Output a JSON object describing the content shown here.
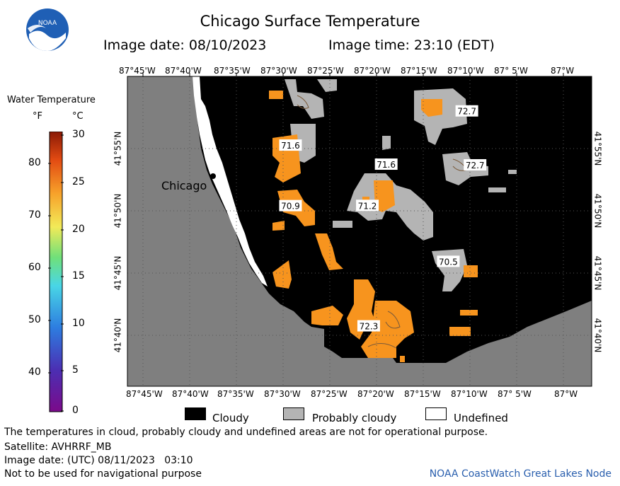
{
  "header": {
    "title": "Chicago Surface Temperature",
    "image_date": "Image date: 08/10/2023",
    "image_time": "Image time: 23:10 (EDT)"
  },
  "logo": {
    "text": "NOAA",
    "icon": "noaa-logo-icon"
  },
  "map": {
    "city_label": "Chicago",
    "lon_labels": [
      "87°45'W",
      "87°40'W",
      "87°35'W",
      "87°30'W",
      "87°25'W",
      "87°20'W",
      "87°15'W",
      "87°10'W",
      "87° 5'W",
      "87°W"
    ],
    "lat_labels": [
      "41°55'N",
      "41°50'N",
      "41°45'N",
      "41°40'N"
    ],
    "temp_labels": [
      {
        "value": "72.7",
        "lon": -87.1722,
        "lat": 41.9662
      },
      {
        "value": "71.6",
        "lon": -87.4868,
        "lat": 41.9204
      },
      {
        "value": "71.6",
        "lon": -87.3161,
        "lat": 41.8949
      },
      {
        "value": "72.7",
        "lon": -87.1576,
        "lat": 41.894
      },
      {
        "value": "70.9",
        "lon": -87.4868,
        "lat": 41.8394
      },
      {
        "value": "71.2",
        "lon": -87.3497,
        "lat": 41.8397
      },
      {
        "value": "70.5",
        "lon": -87.2053,
        "lat": 41.7648
      },
      {
        "value": "72.3",
        "lon": -87.3473,
        "lat": 41.6785
      }
    ],
    "colors": {
      "land": "#7f7f7f",
      "cloudy": "#000000",
      "probably_cloudy": "#b4b4b4",
      "warm_water": "#f7941e",
      "undefined": "#ffffff"
    }
  },
  "legend": {
    "title": "Water Temperature",
    "unit_f": "°F",
    "unit_c": "°C",
    "f_ticks": [
      "80",
      "70",
      "60",
      "50",
      "40"
    ],
    "c_ticks": [
      "30",
      "25",
      "20",
      "15",
      "10",
      "5",
      "0"
    ]
  },
  "key": {
    "cloudy": "Cloudy",
    "probably_cloudy": "Probably cloudy",
    "undefined": "Undefined"
  },
  "footer": {
    "disclaimer": "The temperatures in cloud, probably cloudy and undefined areas are not for operational purpose.",
    "satellite": "Satellite: AVHRRF_MB",
    "utc_date": "Image date: (UTC) 08/11/2023   03:10",
    "nav_warning": "Not to be used for navigational purpose",
    "credit": "NOAA CoastWatch Great Lakes Node"
  }
}
